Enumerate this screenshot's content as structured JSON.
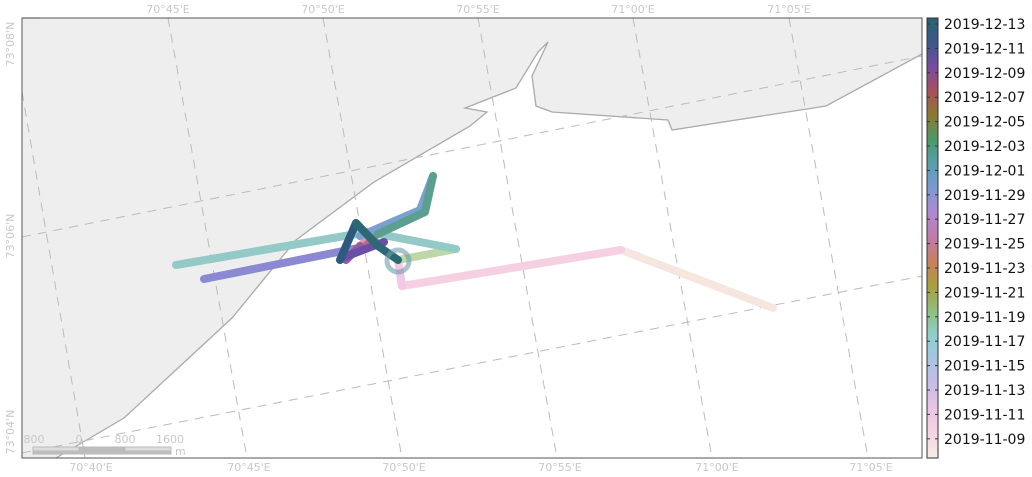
{
  "map": {
    "top_lon_labels": [
      "70°45'E",
      "70°50'E",
      "70°55'E",
      "71°00'E",
      "71°05'E"
    ],
    "bottom_lon_labels": [
      "70°40'E",
      "70°45'E",
      "70°50'E",
      "70°55'E",
      "71°00'E",
      "71°05'E"
    ],
    "lat_labels": [
      "73°08'N",
      "73°06'N",
      "73°04'N"
    ],
    "scale_bar": {
      "labels": [
        "800",
        "0",
        "800",
        "1600"
      ],
      "unit": "m"
    },
    "land_color": "#eeeeee",
    "coast_color": "#aaaaaa",
    "graticule_color": "#bbbbbb"
  },
  "legend": {
    "dates": [
      "2019-12-13",
      "2019-12-11",
      "2019-12-09",
      "2019-12-07",
      "2019-12-05",
      "2019-12-03",
      "2019-12-01",
      "2019-11-29",
      "2019-11-27",
      "2019-11-25",
      "2019-11-23",
      "2019-11-21",
      "2019-11-19",
      "2019-11-17",
      "2019-11-15",
      "2019-11-13",
      "2019-11-11",
      "2019-11-09"
    ],
    "gradient_colors": [
      "#f5efe5",
      "#f4d4e2",
      "#ecc4e4",
      "#c8bde6",
      "#a8c4e4",
      "#8fcfcc",
      "#8fbf80",
      "#a8a040",
      "#c8805a",
      "#c07aa8",
      "#b08ad0",
      "#7f98d4",
      "#5a9eb0",
      "#4a9a6a",
      "#8a7a30",
      "#a8505a",
      "#7a4aa0",
      "#3a5a8a",
      "#2a6270"
    ]
  },
  "track": {
    "segments": [
      {
        "color": "#f5e6e0"
      },
      {
        "color": "#f4d0e2"
      },
      {
        "color": "#f2c8e6"
      },
      {
        "color": "#bcd7a8"
      },
      {
        "color": "#93c9c6"
      },
      {
        "color": "#8c89d3"
      },
      {
        "color": "#e09ab0"
      },
      {
        "color": "#c48a5a"
      },
      {
        "color": "#b56a90"
      },
      {
        "color": "#7aa0d0"
      },
      {
        "color": "#5a9f90"
      },
      {
        "color": "#9a5a9a"
      },
      {
        "color": "#6a4ea8"
      },
      {
        "color": "#2e5a80"
      },
      {
        "color": "#2b6a74"
      }
    ]
  }
}
